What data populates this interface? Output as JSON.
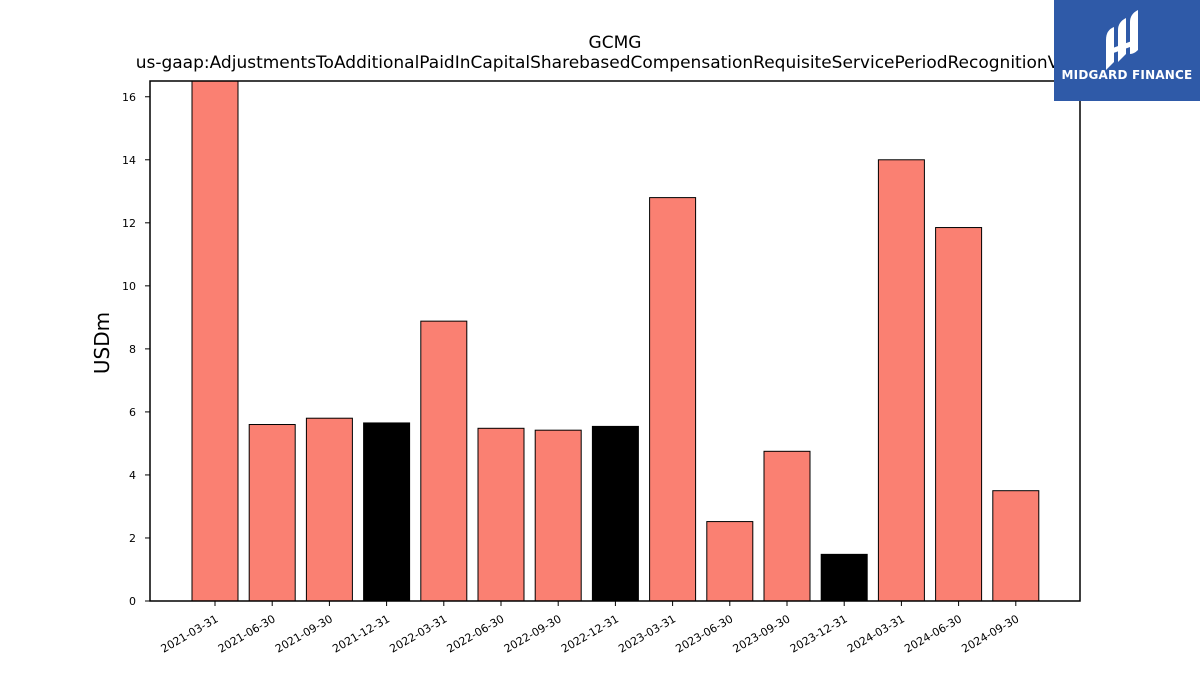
{
  "chart_data": {
    "type": "bar",
    "title": "GCMG",
    "subtitle": "us-gaap:AdjustmentsToAdditionalPaidInCapitalSharebasedCompensationRequisiteServicePeriodRecognitionValue",
    "ylabel": "USDm",
    "xlabel": "",
    "ylim": [
      0,
      16.5
    ],
    "yticks": [
      0,
      2,
      4,
      6,
      8,
      10,
      12,
      14,
      16
    ],
    "categories": [
      "2021-03-31",
      "2021-06-30",
      "2021-09-30",
      "2021-12-31",
      "2022-03-31",
      "2022-06-30",
      "2022-09-30",
      "2022-12-31",
      "2023-03-31",
      "2023-06-30",
      "2023-09-30",
      "2023-12-31",
      "2024-03-31",
      "2024-06-30",
      "2024-09-30"
    ],
    "values": [
      16.6,
      5.6,
      5.8,
      5.65,
      8.88,
      5.48,
      5.42,
      5.54,
      12.8,
      2.52,
      4.75,
      1.48,
      14.0,
      11.85,
      3.5
    ],
    "bar_colors": [
      "#fa8072",
      "#fa8072",
      "#fa8072",
      "#000000",
      "#fa8072",
      "#fa8072",
      "#fa8072",
      "#000000",
      "#fa8072",
      "#fa8072",
      "#fa8072",
      "#000000",
      "#fa8072",
      "#fa8072",
      "#fa8072"
    ],
    "grid": false
  },
  "logo": {
    "text": "MIDGARD FINANCE",
    "background": "#2f5aa8"
  }
}
